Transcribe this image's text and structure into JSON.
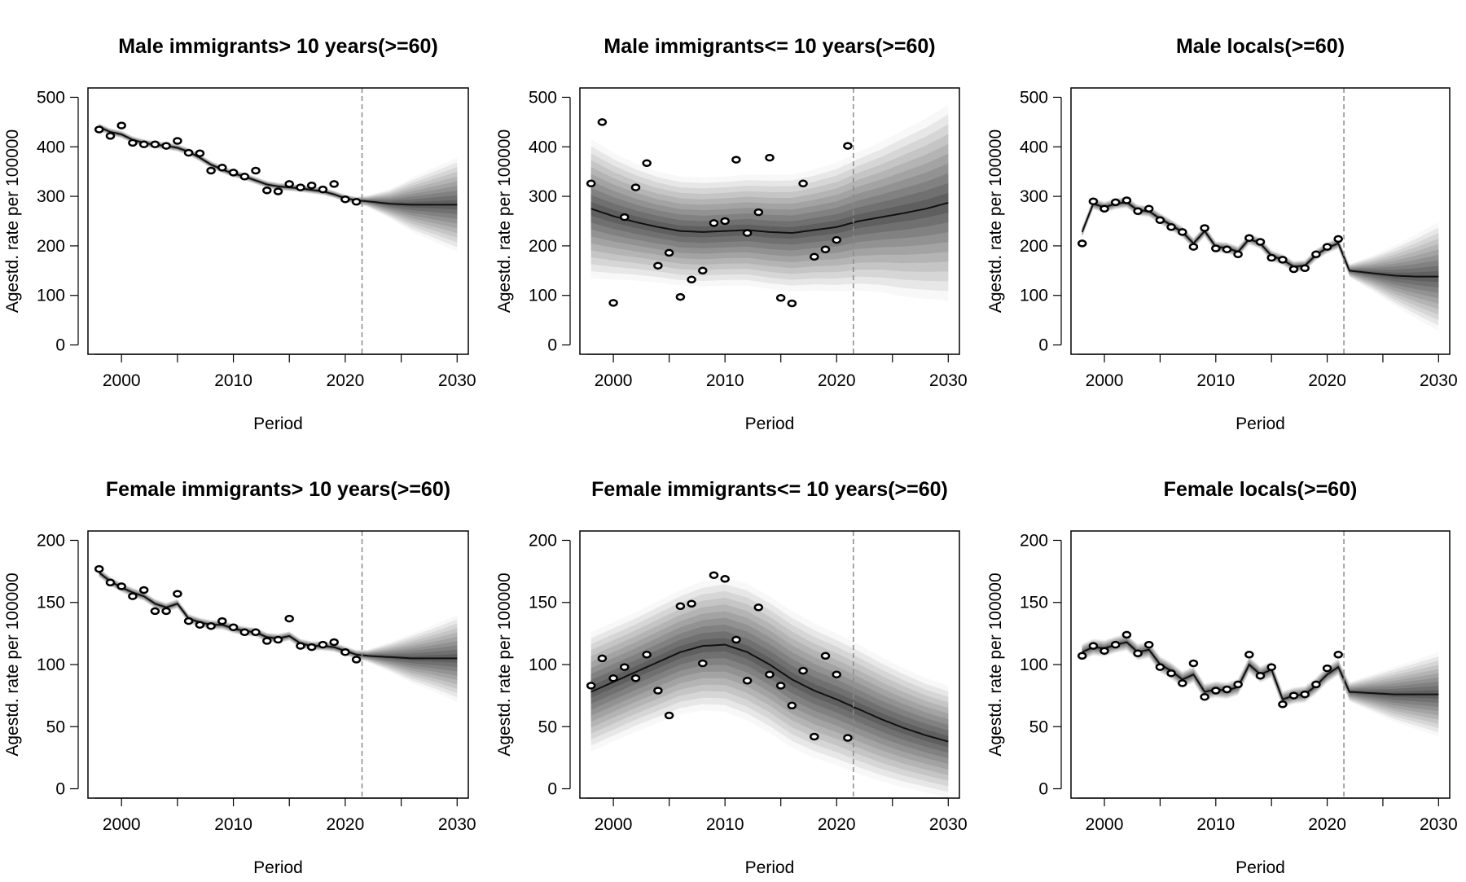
{
  "figure": {
    "x_label": "Period",
    "y_label": "Agestd. rate per 100000"
  },
  "chart_data": [
    {
      "type": "line",
      "title": "Male immigrants> 10 years(>=60)",
      "xlabel": "Period",
      "ylabel": "Agestd. rate per 100000",
      "xlim": [
        1997,
        2031
      ],
      "ylim": [
        0,
        500
      ],
      "xticks": [
        2000,
        2010,
        2020,
        2030
      ],
      "yticks": [
        0,
        100,
        200,
        300,
        400,
        500
      ],
      "forecast_start": 2021.5,
      "observed": {
        "x": [
          1998,
          1999,
          2000,
          2001,
          2002,
          2003,
          2004,
          2005,
          2006,
          2007,
          2008,
          2009,
          2010,
          2011,
          2012,
          2013,
          2014,
          2015,
          2016,
          2017,
          2018,
          2019,
          2020,
          2021
        ],
        "y": [
          435,
          422,
          443,
          408,
          405,
          405,
          402,
          412,
          388,
          387,
          352,
          358,
          348,
          340,
          352,
          312,
          310,
          325,
          318,
          322,
          314,
          325,
          294,
          289
        ]
      },
      "fitted": {
        "x": [
          1998,
          1999,
          2000,
          2001,
          2002,
          2003,
          2004,
          2005,
          2006,
          2007,
          2008,
          2009,
          2010,
          2011,
          2012,
          2013,
          2014,
          2015,
          2016,
          2017,
          2018,
          2019,
          2020,
          2021,
          2022,
          2024,
          2026,
          2028,
          2030
        ],
        "y": [
          440,
          430,
          425,
          414,
          408,
          404,
          402,
          398,
          390,
          378,
          364,
          354,
          346,
          340,
          332,
          324,
          320,
          318,
          316,
          313,
          310,
          304,
          296,
          292,
          290,
          285,
          283,
          283,
          283
        ]
      },
      "band_halfwidth": [
        8,
        8,
        8,
        8,
        8,
        8,
        8,
        8,
        8,
        8,
        8,
        8,
        8,
        8,
        8,
        8,
        8,
        8,
        8,
        8,
        8,
        8,
        8,
        8,
        12,
        30,
        55,
        75,
        95
      ]
    },
    {
      "type": "line",
      "title": "Male immigrants<= 10 years(>=60)",
      "xlabel": "Period",
      "ylabel": "Agestd. rate per 100000",
      "xlim": [
        1997,
        2031
      ],
      "ylim": [
        0,
        500
      ],
      "xticks": [
        2000,
        2010,
        2020,
        2030
      ],
      "yticks": [
        0,
        100,
        200,
        300,
        400,
        500
      ],
      "forecast_start": 2021.5,
      "observed": {
        "x": [
          1998,
          1999,
          2000,
          2001,
          2002,
          2003,
          2004,
          2005,
          2006,
          2007,
          2008,
          2009,
          2010,
          2011,
          2012,
          2013,
          2014,
          2015,
          2016,
          2017,
          2018,
          2019,
          2020,
          2021
        ],
        "y": [
          326,
          450,
          85,
          258,
          318,
          367,
          160,
          186,
          97,
          132,
          150,
          246,
          250,
          374,
          226,
          268,
          378,
          95,
          84,
          326,
          178,
          193,
          212,
          402
        ]
      },
      "fitted": {
        "x": [
          1998,
          2000,
          2002,
          2004,
          2006,
          2008,
          2010,
          2012,
          2014,
          2016,
          2018,
          2020,
          2022,
          2024,
          2026,
          2028,
          2030
        ],
        "y": [
          275,
          260,
          248,
          238,
          230,
          228,
          230,
          232,
          228,
          226,
          232,
          238,
          250,
          258,
          266,
          275,
          287
        ]
      },
      "band_halfwidth": [
        140,
        128,
        118,
        112,
        110,
        110,
        110,
        112,
        115,
        118,
        122,
        130,
        140,
        152,
        168,
        182,
        198
      ]
    },
    {
      "type": "line",
      "title": "Male locals(>=60)",
      "xlabel": "Period",
      "ylabel": "Agestd. rate per 100000",
      "xlim": [
        1997,
        2031
      ],
      "ylim": [
        0,
        500
      ],
      "xticks": [
        2000,
        2010,
        2020,
        2030
      ],
      "yticks": [
        0,
        100,
        200,
        300,
        400,
        500
      ],
      "forecast_start": 2021.5,
      "observed": {
        "x": [
          1998,
          1999,
          2000,
          2001,
          2002,
          2003,
          2004,
          2005,
          2006,
          2007,
          2008,
          2009,
          2010,
          2011,
          2012,
          2013,
          2014,
          2015,
          2016,
          2017,
          2018,
          2019,
          2020,
          2021
        ],
        "y": [
          205,
          290,
          275,
          288,
          292,
          270,
          275,
          252,
          238,
          228,
          198,
          236,
          195,
          193,
          183,
          216,
          208,
          176,
          172,
          153,
          155,
          183,
          198,
          214
        ]
      },
      "fitted": {
        "x": [
          1998,
          1999,
          2000,
          2001,
          2002,
          2003,
          2004,
          2005,
          2006,
          2007,
          2008,
          2009,
          2010,
          2011,
          2012,
          2013,
          2014,
          2015,
          2016,
          2017,
          2018,
          2019,
          2020,
          2021,
          2022,
          2024,
          2026,
          2028,
          2030
        ],
        "y": [
          228,
          285,
          278,
          285,
          288,
          272,
          270,
          255,
          242,
          228,
          205,
          230,
          198,
          196,
          188,
          214,
          205,
          180,
          172,
          158,
          160,
          182,
          196,
          205,
          150,
          145,
          140,
          138,
          138
        ]
      },
      "band_halfwidth": [
        12,
        12,
        12,
        12,
        12,
        12,
        12,
        12,
        12,
        12,
        12,
        12,
        12,
        12,
        12,
        12,
        12,
        12,
        12,
        12,
        12,
        12,
        12,
        12,
        14,
        35,
        60,
        85,
        110
      ]
    },
    {
      "type": "line",
      "title": "Female immigrants> 10 years(>=60)",
      "xlabel": "Period",
      "ylabel": "Agestd. rate per 100000",
      "xlim": [
        1997,
        2031
      ],
      "ylim": [
        0,
        200
      ],
      "xticks": [
        2000,
        2010,
        2020,
        2030
      ],
      "yticks": [
        0,
        50,
        100,
        150,
        200
      ],
      "forecast_start": 2021.5,
      "observed": {
        "x": [
          1998,
          1999,
          2000,
          2001,
          2002,
          2003,
          2004,
          2005,
          2006,
          2007,
          2008,
          2009,
          2010,
          2011,
          2012,
          2013,
          2014,
          2015,
          2016,
          2017,
          2018,
          2019,
          2020,
          2021
        ],
        "y": [
          177,
          166,
          163,
          155,
          160,
          143,
          143,
          157,
          135,
          132,
          131,
          135,
          130,
          126,
          126,
          119,
          120,
          137,
          115,
          114,
          116,
          118,
          110,
          104
        ]
      },
      "fitted": {
        "x": [
          1998,
          1999,
          2000,
          2001,
          2002,
          2003,
          2004,
          2005,
          2006,
          2007,
          2008,
          2009,
          2010,
          2011,
          2012,
          2013,
          2014,
          2015,
          2016,
          2017,
          2018,
          2019,
          2020,
          2021,
          2022,
          2024,
          2026,
          2028,
          2030
        ],
        "y": [
          174,
          167,
          162,
          158,
          155,
          149,
          146,
          149,
          137,
          134,
          132,
          132,
          129,
          127,
          126,
          122,
          121,
          123,
          117,
          115,
          115,
          114,
          111,
          108,
          107,
          106,
          105,
          105,
          105
        ]
      },
      "band_halfwidth": [
        4,
        4,
        4,
        4,
        4,
        4,
        4,
        4,
        4,
        4,
        4,
        4,
        4,
        4,
        4,
        4,
        4,
        4,
        4,
        4,
        4,
        4,
        4,
        4,
        5,
        12,
        20,
        27,
        35
      ]
    },
    {
      "type": "line",
      "title": "Female immigrants<= 10 years(>=60)",
      "xlabel": "Period",
      "ylabel": "Agestd. rate per 100000",
      "xlim": [
        1997,
        2031
      ],
      "ylim": [
        0,
        200
      ],
      "xticks": [
        2000,
        2010,
        2020,
        2030
      ],
      "yticks": [
        0,
        50,
        100,
        150,
        200
      ],
      "forecast_start": 2021.5,
      "observed": {
        "x": [
          1998,
          1999,
          2000,
          2001,
          2002,
          2003,
          2004,
          2005,
          2006,
          2007,
          2008,
          2009,
          2010,
          2011,
          2012,
          2013,
          2014,
          2015,
          2016,
          2017,
          2018,
          2019,
          2020,
          2021
        ],
        "y": [
          83,
          105,
          89,
          98,
          89,
          108,
          79,
          59,
          147,
          149,
          101,
          172,
          169,
          120,
          87,
          146,
          92,
          83,
          67,
          95,
          42,
          107,
          92,
          41
        ]
      },
      "fitted": {
        "x": [
          1998,
          2000,
          2002,
          2004,
          2006,
          2008,
          2010,
          2012,
          2014,
          2016,
          2018,
          2020,
          2022,
          2024,
          2026,
          2028,
          2030
        ],
        "y": [
          78,
          86,
          94,
          102,
          110,
          115,
          116,
          110,
          100,
          88,
          79,
          72,
          64,
          56,
          49,
          43,
          38
        ]
      },
      "band_halfwidth": [
        48,
        48,
        48,
        49,
        50,
        52,
        54,
        55,
        55,
        55,
        54,
        53,
        52,
        50,
        48,
        46,
        45
      ]
    },
    {
      "type": "line",
      "title": "Female locals(>=60)",
      "xlabel": "Period",
      "ylabel": "Agestd. rate per 100000",
      "xlim": [
        1997,
        2031
      ],
      "ylim": [
        0,
        200
      ],
      "xticks": [
        2000,
        2010,
        2020,
        2030
      ],
      "yticks": [
        0,
        50,
        100,
        150,
        200
      ],
      "forecast_start": 2021.5,
      "observed": {
        "x": [
          1998,
          1999,
          2000,
          2001,
          2002,
          2003,
          2004,
          2005,
          2006,
          2007,
          2008,
          2009,
          2010,
          2011,
          2012,
          2013,
          2014,
          2015,
          2016,
          2017,
          2018,
          2019,
          2020,
          2021
        ],
        "y": [
          107,
          115,
          111,
          116,
          124,
          109,
          116,
          98,
          93,
          85,
          101,
          74,
          79,
          80,
          84,
          108,
          91,
          98,
          68,
          75,
          76,
          84,
          97,
          108
        ]
      },
      "fitted": {
        "x": [
          1998,
          1999,
          2000,
          2001,
          2002,
          2003,
          2004,
          2005,
          2006,
          2007,
          2008,
          2009,
          2010,
          2011,
          2012,
          2013,
          2014,
          2015,
          2016,
          2017,
          2018,
          2019,
          2020,
          2021,
          2022,
          2024,
          2026,
          2028,
          2030
        ],
        "y": [
          110,
          114,
          113,
          116,
          118,
          110,
          112,
          100,
          95,
          88,
          92,
          78,
          80,
          79,
          82,
          100,
          92,
          96,
          72,
          75,
          76,
          83,
          92,
          98,
          78,
          77,
          76,
          76,
          76
        ]
      },
      "band_halfwidth": [
        7,
        7,
        7,
        7,
        7,
        7,
        7,
        7,
        7,
        7,
        7,
        7,
        7,
        7,
        7,
        7,
        7,
        7,
        7,
        7,
        7,
        7,
        7,
        7,
        8,
        15,
        22,
        28,
        34
      ]
    }
  ]
}
